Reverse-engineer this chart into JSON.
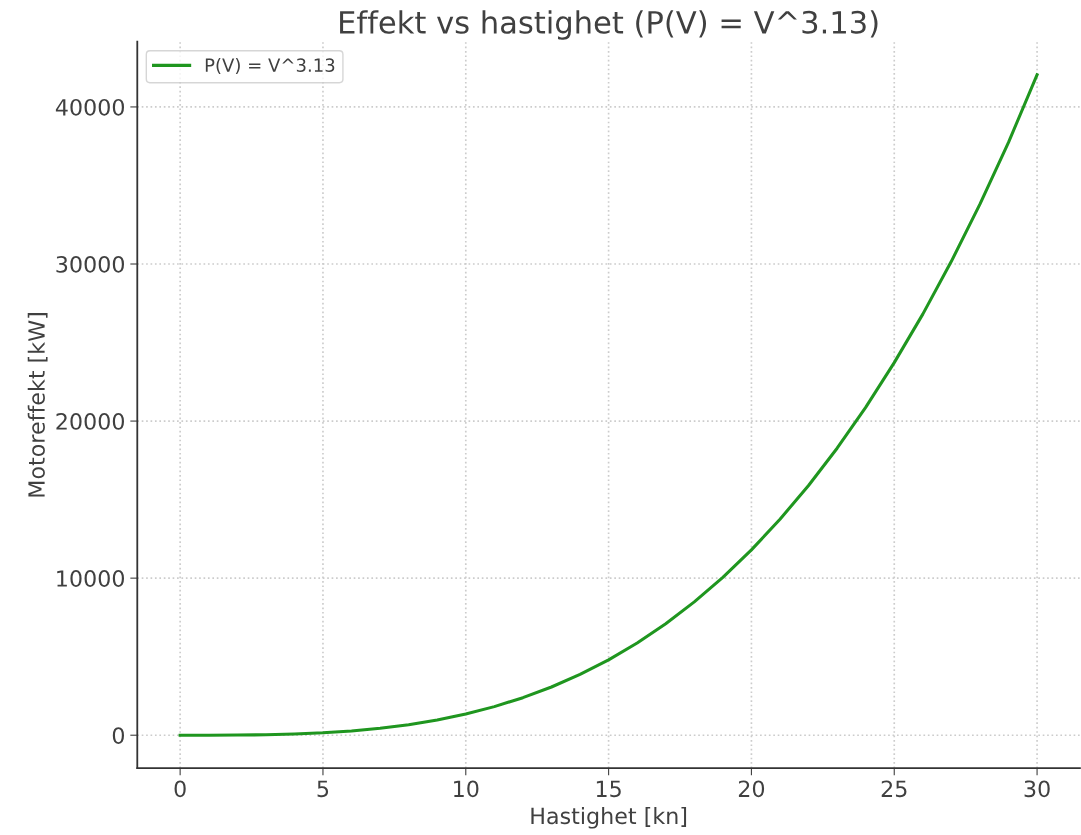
{
  "chart_data": {
    "type": "line",
    "title": "Effekt vs hastighet (P(V) = V^3.13)",
    "xlabel": "Hastighet [kn]",
    "ylabel": "Motoreffekt [kW]",
    "series": [
      {
        "name": "P(V) = V^3.13",
        "color": "#1f961f",
        "x": [
          0,
          1,
          2,
          3,
          4,
          5,
          6,
          7,
          8,
          9,
          10,
          11,
          12,
          13,
          14,
          15,
          16,
          17,
          18,
          19,
          20,
          21,
          22,
          23,
          24,
          25,
          26,
          27,
          28,
          29,
          30
        ],
        "values": [
          0,
          1,
          9,
          31,
          77,
          154,
          273,
          442,
          671,
          970,
          1350,
          1820,
          2390,
          3070,
          3870,
          4800,
          5870,
          7100,
          8490,
          10050,
          11800,
          13750,
          15900,
          18270,
          20870,
          23720,
          26810,
          30170,
          33810,
          37740,
          42050
        ]
      }
    ],
    "xlim": [
      -1.5,
      31.5
    ],
    "ylim": [
      -2100,
      44150
    ],
    "xticks": [
      0,
      5,
      10,
      15,
      20,
      25,
      30
    ],
    "yticks": [
      0,
      10000,
      20000,
      30000,
      40000
    ],
    "grid": true,
    "legend": "top left",
    "line_style": "solid",
    "marker": "none"
  }
}
